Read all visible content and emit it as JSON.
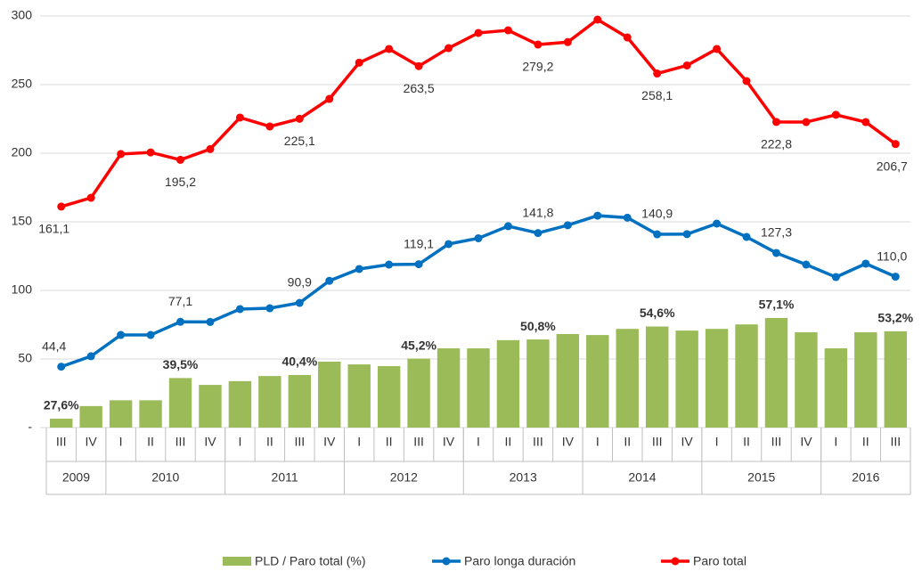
{
  "chart_data": {
    "type": "combo",
    "categories": [
      "III",
      "IV",
      "I",
      "II",
      "III",
      "IV",
      "I",
      "II",
      "III",
      "IV",
      "I",
      "II",
      "III",
      "IV",
      "I",
      "II",
      "III",
      "IV",
      "I",
      "II",
      "III",
      "IV",
      "I",
      "II",
      "III",
      "IV",
      "I",
      "II",
      "III"
    ],
    "years": [
      "2009",
      null,
      "2010",
      null,
      null,
      null,
      "2011",
      null,
      null,
      null,
      "2012",
      null,
      null,
      null,
      "2013",
      null,
      null,
      null,
      "2014",
      null,
      null,
      null,
      "2015",
      null,
      null,
      null,
      "2016",
      null,
      null
    ],
    "ylim": [
      0,
      300
    ],
    "yticks": [
      {
        "value": 0,
        "label": "-"
      },
      50,
      100,
      150,
      200,
      250,
      300
    ],
    "y2lim": [
      25,
      145.5
    ],
    "grid": true,
    "series": [
      {
        "name": "PLD / Paro total (%)",
        "type": "bar",
        "axis": "y2",
        "color": "#9bbb59",
        "values": [
          27.6,
          31.3,
          33.0,
          33.0,
          39.5,
          37.5,
          38.6,
          40.1,
          40.4,
          44.3,
          43.5,
          43.0,
          45.2,
          48.2,
          48.2,
          50.6,
          50.8,
          52.4,
          52.1,
          53.9,
          54.6,
          53.4,
          53.9,
          55.2,
          57.1,
          52.9,
          48.2,
          52.9,
          53.2
        ],
        "value_labels": [
          "27,6%",
          null,
          null,
          null,
          "39,5%",
          null,
          null,
          null,
          "40,4%",
          null,
          null,
          null,
          "45,2%",
          null,
          null,
          null,
          "50,8%",
          null,
          null,
          null,
          "54,6%",
          null,
          null,
          null,
          "57,1%",
          null,
          null,
          null,
          "53,2%"
        ]
      },
      {
        "name": "Paro longa duración",
        "type": "line",
        "color": "#0070c0",
        "values": [
          44.4,
          52,
          67.5,
          67.5,
          77.1,
          77,
          86.4,
          87,
          90.9,
          107,
          115.6,
          118.8,
          119.1,
          133.8,
          138,
          146.8,
          141.8,
          147.5,
          154.5,
          153,
          140.9,
          141,
          148.7,
          139,
          127.3,
          118.8,
          109.7,
          119.5,
          110.0
        ],
        "value_labels": [
          "44,4",
          null,
          null,
          null,
          "77,1",
          null,
          null,
          null,
          "90,9",
          null,
          null,
          null,
          "119,1",
          null,
          null,
          null,
          "141,8",
          null,
          null,
          null,
          "140,9",
          null,
          null,
          null,
          "127,3",
          null,
          null,
          null,
          "110,0"
        ]
      },
      {
        "name": "Paro total",
        "type": "line",
        "color": "#ff0000",
        "values": [
          161.1,
          167.5,
          199.4,
          200.6,
          195.2,
          203,
          226,
          219.5,
          225.1,
          239.6,
          266,
          276,
          263.5,
          276.6,
          287.7,
          289.6,
          279.2,
          281,
          297.4,
          284.4,
          258.1,
          264,
          276,
          252.6,
          222.8,
          222.7,
          228,
          222.7,
          206.7
        ],
        "value_labels": [
          "161,1",
          null,
          null,
          null,
          "195,2",
          null,
          null,
          null,
          "225,1",
          null,
          null,
          null,
          "263,5",
          null,
          null,
          null,
          "279,2",
          null,
          null,
          null,
          "258,1",
          null,
          null,
          null,
          "222,8",
          null,
          null,
          null,
          "206,7"
        ]
      }
    ]
  }
}
